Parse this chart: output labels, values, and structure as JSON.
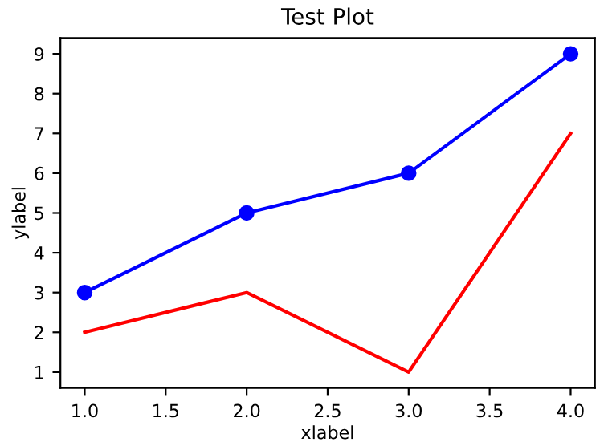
{
  "chart_data": {
    "type": "line",
    "title": "Test Plot",
    "xlabel": "xlabel",
    "ylabel": "ylabel",
    "x": [
      1.0,
      2.0,
      3.0,
      4.0
    ],
    "series": [
      {
        "color": "#0000ff",
        "values": [
          3,
          5,
          6,
          9
        ],
        "marker": "circle"
      },
      {
        "color": "#ff0000",
        "values": [
          2,
          3,
          1,
          7
        ],
        "marker": "none"
      }
    ],
    "xlim": [
      0.85,
      4.15
    ],
    "ylim": [
      0.6,
      9.4
    ],
    "xticks": [
      {
        "value": 1.0,
        "label": "1.0"
      },
      {
        "value": 1.5,
        "label": "1.5"
      },
      {
        "value": 2.0,
        "label": "2.0"
      },
      {
        "value": 2.5,
        "label": "2.5"
      },
      {
        "value": 3.0,
        "label": "3.0"
      },
      {
        "value": 3.5,
        "label": "3.5"
      },
      {
        "value": 4.0,
        "label": "4.0"
      }
    ],
    "yticks": [
      1,
      2,
      3,
      4,
      5,
      6,
      7,
      8,
      9
    ],
    "grid": false,
    "legend": false,
    "line_style": "solid"
  }
}
